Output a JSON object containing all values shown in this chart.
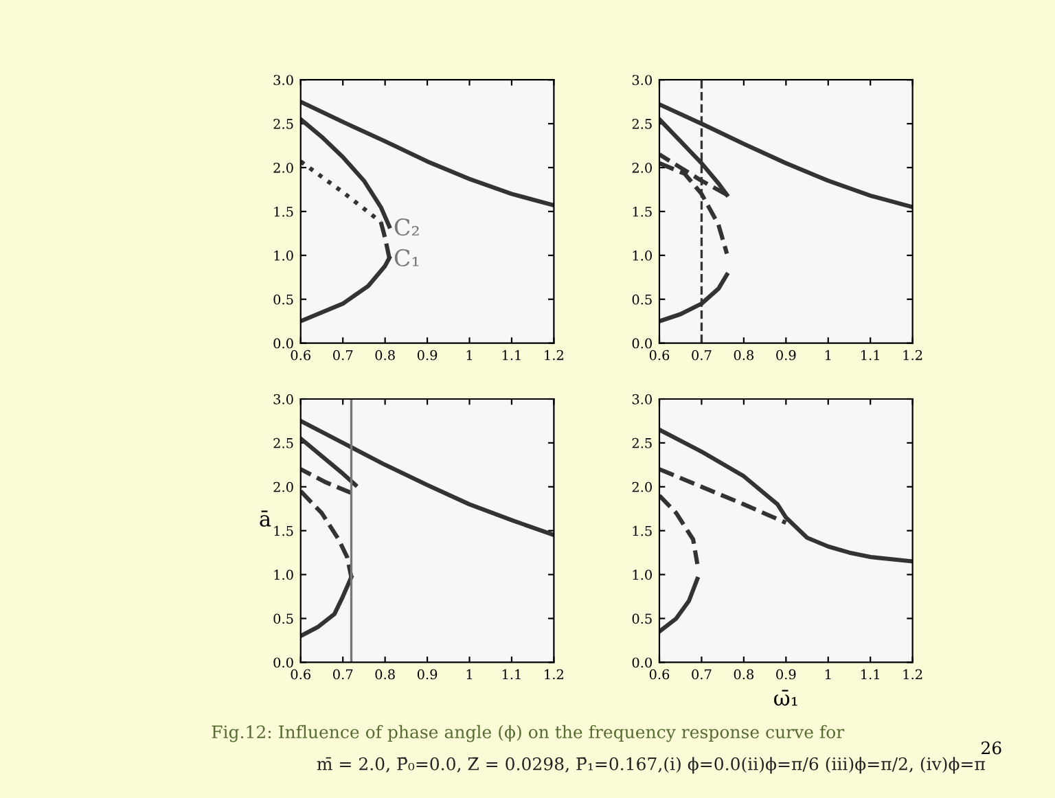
{
  "chart_data": [
    {
      "type": "line",
      "xlim": [
        0.6,
        1.2
      ],
      "ylim": [
        0.0,
        3.0
      ],
      "xticks": [
        {
          "value": 0.6,
          "label": "0.6"
        },
        {
          "value": 0.7,
          "label": "0.7"
        },
        {
          "value": 0.8,
          "label": "0.8"
        },
        {
          "value": 0.9,
          "label": "0.9"
        },
        1,
        {
          "value": 1.1,
          "label": "1.1"
        },
        {
          "value": 1.2,
          "label": "1.2"
        }
      ],
      "yticks": [
        {
          "value": 0.0,
          "label": "0.0"
        },
        {
          "value": 0.5,
          "label": "0.5"
        },
        {
          "value": 1.0,
          "label": "1.0"
        },
        {
          "value": 1.5,
          "label": "1.5"
        },
        {
          "value": 2.0,
          "label": "2.0"
        },
        {
          "value": 2.5,
          "label": "2.5"
        },
        {
          "value": 3.0,
          "label": "3.0"
        }
      ],
      "grid": false,
      "legend": false,
      "series": [
        {
          "color": "#333333",
          "line_style": "solid",
          "x": [
            0.6,
            0.7,
            0.8,
            0.9,
            1.0,
            1.1,
            1.2
          ],
          "values": [
            2.75,
            2.52,
            2.3,
            2.07,
            1.87,
            1.7,
            1.57
          ]
        },
        {
          "color": "#333333",
          "line_style": "solid",
          "x": [
            0.6,
            0.65,
            0.7,
            0.75,
            0.79,
            0.81
          ],
          "values": [
            2.55,
            2.35,
            2.12,
            1.85,
            1.55,
            1.33
          ]
        },
        {
          "color": "#333333",
          "line_style": "dotted",
          "x": [
            0.6,
            0.7,
            0.79
          ],
          "values": [
            2.07,
            1.72,
            1.38
          ]
        },
        {
          "color": "#333333",
          "line_style": "dashed",
          "x": [
            0.79,
            0.8,
            0.81
          ],
          "values": [
            1.38,
            1.2,
            0.97
          ]
        },
        {
          "color": "#333333",
          "line_style": "solid",
          "x": [
            0.6,
            0.7,
            0.76,
            0.8,
            0.81
          ],
          "values": [
            0.25,
            0.45,
            0.65,
            0.88,
            0.97
          ]
        }
      ],
      "annotations": [
        {
          "text": "C₂",
          "x": 0.82,
          "y": 1.3
        },
        {
          "text": "C₁",
          "x": 0.82,
          "y": 0.95
        }
      ]
    },
    {
      "type": "line",
      "xlim": [
        0.6,
        1.2
      ],
      "ylim": [
        0.0,
        3.0
      ],
      "xticks": [
        {
          "value": 0.6,
          "label": "0.6"
        },
        {
          "value": 0.7,
          "label": "0.7"
        },
        {
          "value": 0.8,
          "label": "0.8"
        },
        {
          "value": 0.9,
          "label": "0.9"
        },
        1,
        {
          "value": 1.1,
          "label": "1.1"
        },
        {
          "value": 1.2,
          "label": "1.2"
        }
      ],
      "yticks": [
        {
          "value": 0.0,
          "label": "0.0"
        },
        {
          "value": 0.5,
          "label": "0.5"
        },
        {
          "value": 1.0,
          "label": "1.0"
        },
        {
          "value": 1.5,
          "label": "1.5"
        },
        {
          "value": 2.0,
          "label": "2.0"
        },
        {
          "value": 2.5,
          "label": "2.5"
        },
        {
          "value": 3.0,
          "label": "3.0"
        }
      ],
      "grid": false,
      "legend": false,
      "ref_lines": [
        {
          "axis": "x",
          "value": 0.7,
          "color": "#333333",
          "line_style": "dashed"
        }
      ],
      "series": [
        {
          "color": "#333333",
          "line_style": "solid",
          "x": [
            0.6,
            0.7,
            0.8,
            0.9,
            1.0,
            1.1,
            1.2
          ],
          "values": [
            2.72,
            2.5,
            2.27,
            2.05,
            1.85,
            1.68,
            1.55
          ]
        },
        {
          "color": "#333333",
          "line_style": "solid",
          "x": [
            0.6,
            0.65,
            0.7,
            0.74,
            0.76
          ],
          "values": [
            2.55,
            2.3,
            2.05,
            1.82,
            1.69
          ]
        },
        {
          "color": "#333333",
          "line_style": "dashed",
          "x": [
            0.76,
            0.7,
            0.65,
            0.6
          ],
          "values": [
            1.69,
            1.85,
            2.0,
            2.15
          ]
        },
        {
          "color": "#333333",
          "line_style": "dashed",
          "x": [
            0.6,
            0.66,
            0.7,
            0.74,
            0.76
          ],
          "values": [
            2.05,
            1.93,
            1.7,
            1.35,
            1.02
          ]
        },
        {
          "color": "#333333",
          "line_style": "solid",
          "x": [
            0.76,
            0.74,
            0.7,
            0.65,
            0.6
          ],
          "values": [
            0.78,
            0.62,
            0.45,
            0.33,
            0.25
          ]
        }
      ]
    },
    {
      "type": "line",
      "xlim": [
        0.6,
        1.2
      ],
      "ylim": [
        0.0,
        3.0
      ],
      "ylabel": "ā",
      "xticks": [
        {
          "value": 0.6,
          "label": "0.6"
        },
        {
          "value": 0.7,
          "label": "0.7"
        },
        {
          "value": 0.8,
          "label": "0.8"
        },
        {
          "value": 0.9,
          "label": "0.9"
        },
        1,
        {
          "value": 1.1,
          "label": "1.1"
        },
        {
          "value": 1.2,
          "label": "1.2"
        }
      ],
      "yticks": [
        {
          "value": 0.0,
          "label": "0.0"
        },
        {
          "value": 0.5,
          "label": "0.5"
        },
        {
          "value": 1.0,
          "label": "1.0"
        },
        {
          "value": 1.5,
          "label": "1.5"
        },
        {
          "value": 2.0,
          "label": "2.0"
        },
        {
          "value": 2.5,
          "label": "2.5"
        },
        {
          "value": 3.0,
          "label": "3.0"
        }
      ],
      "grid": false,
      "legend": false,
      "ref_lines": [
        {
          "axis": "x",
          "value": 0.72,
          "color": "#777777",
          "line_style": "solid"
        }
      ],
      "series": [
        {
          "color": "#333333",
          "line_style": "solid",
          "x": [
            0.6,
            0.7,
            0.8,
            0.9,
            1.0,
            1.1,
            1.2
          ],
          "values": [
            2.75,
            2.5,
            2.25,
            2.02,
            1.8,
            1.62,
            1.45
          ]
        },
        {
          "color": "#333333",
          "line_style": "solid",
          "x": [
            0.6,
            0.65,
            0.7,
            0.73
          ],
          "values": [
            2.55,
            2.35,
            2.15,
            2.02
          ]
        },
        {
          "color": "#333333",
          "line_style": "dashed",
          "x": [
            0.72,
            0.66,
            0.6
          ],
          "values": [
            1.93,
            2.05,
            2.2
          ]
        },
        {
          "color": "#333333",
          "line_style": "dashed",
          "x": [
            0.6,
            0.65,
            0.69,
            0.71,
            0.72
          ],
          "values": [
            1.95,
            1.7,
            1.4,
            1.2,
            0.97
          ]
        },
        {
          "color": "#333333",
          "line_style": "solid",
          "x": [
            0.72,
            0.7,
            0.68,
            0.64,
            0.6
          ],
          "values": [
            0.97,
            0.75,
            0.55,
            0.4,
            0.3
          ]
        }
      ]
    },
    {
      "type": "line",
      "xlim": [
        0.6,
        1.2
      ],
      "ylim": [
        0.0,
        3.0
      ],
      "xlabel": "ω̄₁",
      "xticks": [
        {
          "value": 0.6,
          "label": "0.6"
        },
        {
          "value": 0.7,
          "label": "0.7"
        },
        {
          "value": 0.8,
          "label": "0.8"
        },
        {
          "value": 0.9,
          "label": "0.9"
        },
        1,
        {
          "value": 1.1,
          "label": "1.1"
        },
        {
          "value": 1.2,
          "label": "1.2"
        }
      ],
      "yticks": [
        {
          "value": 0.0,
          "label": "0.0"
        },
        {
          "value": 0.5,
          "label": "0.5"
        },
        {
          "value": 1.0,
          "label": "1.0"
        },
        {
          "value": 1.5,
          "label": "1.5"
        },
        {
          "value": 2.0,
          "label": "2.0"
        },
        {
          "value": 2.5,
          "label": "2.5"
        },
        {
          "value": 3.0,
          "label": "3.0"
        }
      ],
      "grid": false,
      "legend": false,
      "series": [
        {
          "color": "#333333",
          "line_style": "solid",
          "x": [
            0.6,
            0.7,
            0.8,
            0.88,
            0.9,
            0.95,
            1.0,
            1.05,
            1.1,
            1.2
          ],
          "values": [
            2.65,
            2.4,
            2.12,
            1.8,
            1.65,
            1.42,
            1.32,
            1.25,
            1.2,
            1.15
          ]
        },
        {
          "color": "#333333",
          "line_style": "dashed",
          "x": [
            0.6,
            0.7,
            0.8,
            0.9
          ],
          "values": [
            2.2,
            2.0,
            1.8,
            1.59
          ]
        },
        {
          "color": "#333333",
          "line_style": "dashed",
          "x": [
            0.6,
            0.64,
            0.68,
            0.69
          ],
          "values": [
            1.9,
            1.7,
            1.4,
            1.12
          ]
        },
        {
          "color": "#333333",
          "line_style": "solid",
          "x": [
            0.69,
            0.67,
            0.64,
            0.6
          ],
          "values": [
            0.95,
            0.7,
            0.5,
            0.35
          ]
        }
      ],
      "annotations": [
        "Fig.12: Influence of phase angle (ϕ) on the frequency response curve for",
        "m̄ = 2.0, P̄₀=0.0, Z̄ = 0.0298, P̄₁=0.167,(i) ϕ=0.0(ii)ϕ=π/6 (iii)ϕ=π/2, (iv)ϕ=π",
        "26"
      ]
    }
  ]
}
